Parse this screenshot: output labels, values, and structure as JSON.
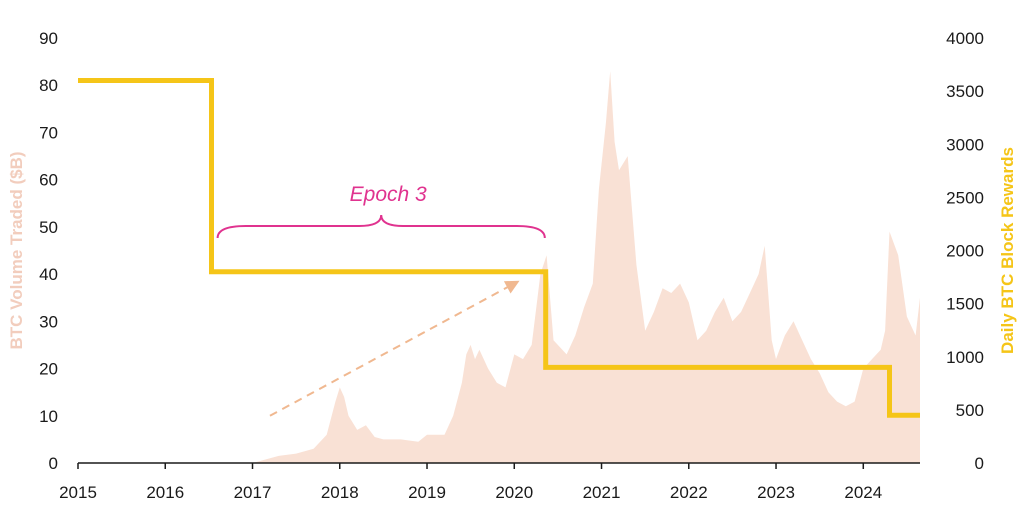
{
  "chart_data": {
    "type": "area",
    "x_range": [
      2015,
      2024.65
    ],
    "xticks": [
      "2015",
      "2016",
      "2017",
      "2018",
      "2019",
      "2020",
      "2021",
      "2022",
      "2023",
      "2024"
    ],
    "y_left": {
      "label": "BTC Volume Traded ($B)",
      "range": [
        0,
        90
      ],
      "ticks": [
        "0",
        "10",
        "20",
        "30",
        "40",
        "50",
        "60",
        "70",
        "80",
        "90"
      ],
      "color": "#f9e1d5"
    },
    "y_right": {
      "label": "Daily BTC Block Rewards",
      "range": [
        0,
        4000
      ],
      "ticks": [
        "0",
        "500",
        "1000",
        "1500",
        "2000",
        "2500",
        "3000",
        "3500",
        "4000"
      ],
      "color": "#f5c518"
    },
    "series": [
      {
        "axis": "left",
        "kind": "area",
        "color": "#f9e1d5",
        "x": [
          2015,
          2017.0,
          2017.3,
          2017.5,
          2017.7,
          2017.85,
          2017.95,
          2018.0,
          2018.05,
          2018.1,
          2018.2,
          2018.3,
          2018.4,
          2018.5,
          2018.7,
          2018.9,
          2019.0,
          2019.2,
          2019.3,
          2019.4,
          2019.45,
          2019.5,
          2019.55,
          2019.6,
          2019.7,
          2019.8,
          2019.9,
          2020.0,
          2020.1,
          2020.2,
          2020.3,
          2020.37,
          2020.45,
          2020.6,
          2020.7,
          2020.8,
          2020.9,
          2020.97,
          2021.05,
          2021.1,
          2021.15,
          2021.2,
          2021.3,
          2021.4,
          2021.5,
          2021.6,
          2021.7,
          2021.8,
          2021.9,
          2022.0,
          2022.1,
          2022.2,
          2022.3,
          2022.4,
          2022.5,
          2022.6,
          2022.7,
          2022.8,
          2022.87,
          2022.95,
          2023.0,
          2023.1,
          2023.2,
          2023.3,
          2023.4,
          2023.5,
          2023.6,
          2023.7,
          2023.8,
          2023.9,
          2024.0,
          2024.1,
          2024.2,
          2024.25,
          2024.3,
          2024.4,
          2024.5,
          2024.6,
          2024.65
        ],
        "values": [
          0,
          0,
          1.5,
          2,
          3,
          6,
          13,
          16,
          14,
          10,
          7,
          8,
          5.5,
          5,
          5,
          4.5,
          6,
          6,
          10,
          17,
          23,
          25,
          22,
          24,
          20,
          17,
          16,
          23,
          22,
          25,
          40,
          44,
          26,
          23,
          27,
          33,
          38,
          58,
          72,
          83,
          68,
          62,
          65,
          42,
          28,
          32,
          37,
          36,
          38,
          34,
          26,
          28,
          32,
          35,
          30,
          32,
          36,
          40,
          46,
          26,
          22,
          27,
          30,
          26,
          22,
          19,
          15,
          13,
          12,
          13,
          20,
          22,
          24,
          28,
          49,
          44,
          31,
          27,
          35
        ]
      },
      {
        "axis": "right",
        "kind": "step",
        "color": "#f5c518",
        "x": [
          2015,
          2016.53,
          2016.53,
          2020.36,
          2020.36,
          2024.3,
          2024.3,
          2024.65
        ],
        "values": [
          3600,
          3600,
          1800,
          1800,
          900,
          900,
          450,
          450
        ]
      }
    ],
    "annotations": [
      {
        "type": "brace",
        "text": "Epoch 3",
        "x_start": 2016.6,
        "x_end": 2020.35,
        "color": "#e0338f"
      },
      {
        "type": "arrow",
        "style": "dashed",
        "color": "#f0b890",
        "from": [
          2017.2,
          10
        ],
        "to": [
          2020.0,
          38
        ]
      }
    ],
    "legend": "none",
    "grid": false
  }
}
